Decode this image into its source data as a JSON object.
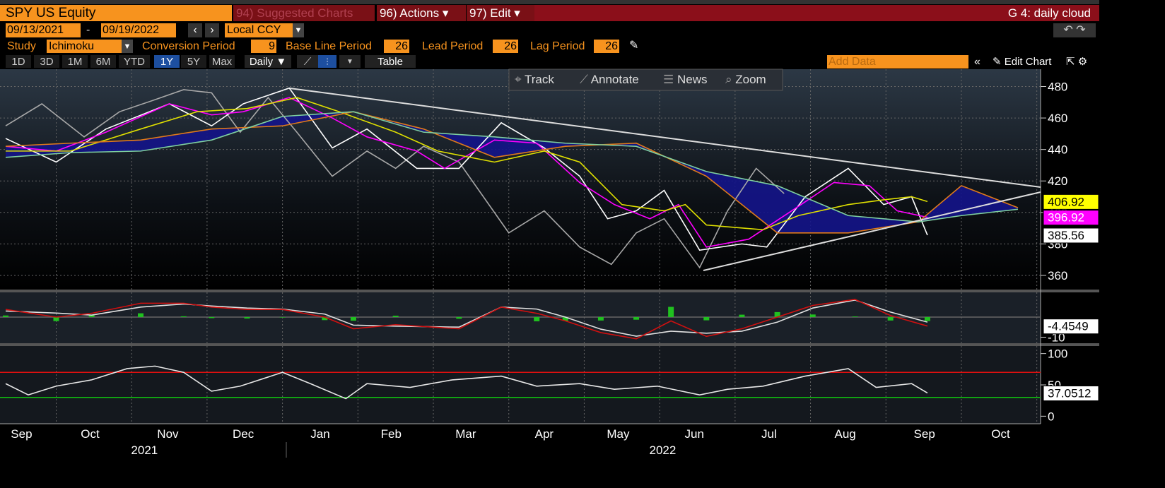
{
  "toolbar": {
    "security": "SPY US Equity",
    "suggested": "94) Suggested Charts",
    "actions": "96) Actions ▾",
    "edit": "97) Edit ▾",
    "page": "G 4: daily cloud",
    "start_date": "09/13/2021",
    "end_date": "09/19/2022",
    "currency": "Local CCY",
    "study_label": "Study",
    "study": "Ichimoku",
    "params": [
      {
        "label": "Conversion Period",
        "value": 9
      },
      {
        "label": "Base Line Period",
        "value": 26
      },
      {
        "label": "Lead Period",
        "value": 26
      },
      {
        "label": "Lag Period",
        "value": 26
      }
    ],
    "ranges": [
      "1D",
      "3D",
      "1M",
      "6M",
      "YTD",
      "1Y",
      "5Y",
      "Max"
    ],
    "selected_range": 5,
    "frequency": "Daily ▼",
    "table": "Table",
    "add_data": "Add Data",
    "edit_chart": "Edit Chart",
    "tools": [
      "Track",
      "Annotate",
      "News",
      "Zoom"
    ]
  },
  "chart_data": [
    {
      "type": "line",
      "xlim": [
        0.33,
        14.05
      ],
      "ylim": [
        351,
        491
      ],
      "yticks": [
        360,
        380,
        400,
        420,
        440,
        460,
        480
      ],
      "grid": true,
      "xgrid": [
        1,
        2,
        3,
        4,
        5,
        6,
        7,
        8,
        9,
        10,
        11,
        12,
        13,
        14
      ],
      "cloud": {
        "between": [
          4,
          5
        ],
        "color": "#14148a"
      },
      "series": [
        {
          "color": "#a8a8a8",
          "x": [
            0.33,
            0.81,
            1.37,
            1.84,
            2.27,
            2.69,
            3.06,
            3.44,
            3.81,
            4.19,
            4.66,
            5.12,
            5.5,
            5.87,
            6.34,
            7.0,
            7.47,
            7.94,
            8.36,
            8.69,
            9.06,
            9.53,
            9.9,
            10.28,
            10.65
          ],
          "values": [
            455,
            469,
            448,
            464,
            471,
            478,
            476,
            451,
            473,
            451,
            423,
            439,
            428,
            442,
            432,
            387,
            401,
            378,
            367,
            387,
            396,
            365,
            401,
            428,
            412
          ]
        },
        {
          "color": "#ffffff",
          "x": [
            0.33,
            1,
            1.66,
            2.5,
            3.06,
            3.48,
            4.09,
            4.66,
            5.12,
            5.78,
            6.34,
            6.9,
            7.47,
            7.94,
            8.31,
            8.69,
            9.06,
            9.53,
            10.09,
            10.42,
            10.93,
            11.5,
            11.97,
            12.34,
            12.55
          ],
          "values": [
            447,
            432,
            453,
            469,
            455,
            469,
            479,
            441,
            453,
            428,
            428,
            457,
            441,
            423,
            396,
            401,
            414,
            376,
            380,
            378,
            410,
            428,
            405,
            410,
            385.56
          ],
          "label_color": "#ffffff",
          "label_text": "#000000"
        },
        {
          "color": "#ff00ff",
          "x": [
            0.33,
            1,
            1.66,
            2.5,
            3.06,
            3.48,
            4.09,
            4.66,
            5.12,
            5.78,
            6.15,
            6.81,
            7.37,
            7.94,
            8.4,
            8.87,
            9.25,
            9.62,
            10.18,
            10.75,
            11.31,
            11.78,
            12.15,
            12.55
          ],
          "values": [
            442,
            439,
            451,
            469,
            462,
            464,
            473,
            460,
            448,
            439,
            428,
            446,
            444,
            419,
            405,
            396,
            405,
            378,
            383,
            401,
            419,
            417,
            401,
            396.92
          ],
          "label_color": "#ff00ff",
          "label_text": "#ffffff"
        },
        {
          "color": "#e0e000",
          "x": [
            0.33,
            1.19,
            2.12,
            2.87,
            3.53,
            4.19,
            4.75,
            5.5,
            6.06,
            6.81,
            7.47,
            7.94,
            8.5,
            9.06,
            9.34,
            9.62,
            10.37,
            10.84,
            11.5,
            11.97,
            12.34,
            12.55
          ],
          "values": [
            439,
            439,
            453,
            464,
            466,
            473,
            464,
            451,
            439,
            432,
            439,
            432,
            405,
            401,
            405,
            392,
            389,
            398,
            405,
            408,
            410,
            406.92
          ],
          "label_color": "#ffff00",
          "label_text": "#000000"
        },
        {
          "color": "#e07a1a",
          "x": [
            0.33,
            1.19,
            2.12,
            3.06,
            4,
            4.94,
            5.87,
            6.81,
            7.75,
            8.69,
            9.62,
            10.56,
            11.5,
            12.43,
            13,
            13.75
          ],
          "values": [
            442,
            444,
            446,
            453,
            455,
            464,
            453,
            435,
            442,
            444,
            423,
            387,
            387,
            394,
            417,
            403
          ]
        },
        {
          "color": "#7fd0a0",
          "x": [
            0.33,
            1.19,
            2.12,
            3.06,
            4,
            4.94,
            5.87,
            6.81,
            7.75,
            8.69,
            9.62,
            10.56,
            11.5,
            12.43,
            13,
            13.75
          ],
          "values": [
            435,
            438,
            439,
            446,
            461,
            464,
            451,
            448,
            444,
            442,
            426,
            417,
            398,
            394,
            398,
            402
          ]
        }
      ]
    },
    {
      "type": "line",
      "xlim": [
        0.33,
        14.05
      ],
      "ylim": [
        -13,
        12.3
      ],
      "yticks": [
        -10
      ],
      "xgrid": [
        1,
        2,
        3,
        4,
        5,
        6,
        7,
        8,
        9,
        10,
        11,
        12,
        13,
        14
      ],
      "levels": [
        {
          "value": 0,
          "color": "#666666"
        }
      ],
      "histogram": {
        "color": "#20c020",
        "x": [
          0.33,
          1,
          1.47,
          2.12,
          2.69,
          3.06,
          3.53,
          4,
          4.56,
          4.94,
          5.5,
          6.34,
          6.9,
          7.37,
          7.75,
          8.22,
          8.69,
          9.15,
          9.62,
          10.09,
          10.56,
          11.03,
          11.59,
          12.06,
          12.55
        ],
        "values": [
          0.8,
          -2,
          0.9,
          1.9,
          0.4,
          -0.5,
          -0.7,
          -0.2,
          -1.5,
          -1.8,
          0.7,
          -0.8,
          0,
          -2.1,
          -1.9,
          -1.7,
          -1.3,
          5.1,
          -1.6,
          1.2,
          2.5,
          1.3,
          0.3,
          -1.7,
          -1.95
        ]
      },
      "series": [
        {
          "color": "#e0e0e0",
          "x": [
            0.33,
            1,
            1.47,
            2.12,
            2.69,
            3.06,
            3.53,
            4,
            4.56,
            4.94,
            5.5,
            6.34,
            6.9,
            7.37,
            7.75,
            8.22,
            8.69,
            9.15,
            9.62,
            10.09,
            10.56,
            11.03,
            11.59,
            12.06,
            12.55
          ],
          "values": [
            3,
            2,
            1,
            5,
            6.5,
            5.5,
            4.5,
            4,
            1.5,
            -4,
            -4.5,
            -5,
            5,
            4,
            0,
            -6,
            -9.5,
            -7,
            -8,
            -7,
            -2.5,
            4.5,
            8.5,
            2.5,
            -2.5
          ]
        },
        {
          "color": "#d01010",
          "x": [
            0.33,
            1,
            1.47,
            2.12,
            2.69,
            3.06,
            3.53,
            4,
            4.56,
            4.94,
            5.5,
            6.34,
            6.9,
            7.37,
            7.75,
            8.22,
            8.69,
            9.15,
            9.62,
            10.09,
            10.56,
            11.03,
            11.59,
            12.06,
            12.55
          ],
          "values": [
            3.8,
            0,
            1.9,
            6.9,
            6.9,
            5,
            3.8,
            3.8,
            0,
            -5.8,
            -3.8,
            -5.8,
            5,
            1.9,
            -1.9,
            -7.7,
            -10.8,
            -1.9,
            -9.6,
            -5.8,
            0,
            5.8,
            8.8,
            0.8,
            -4.4549
          ],
          "label_color": "#ffffff",
          "label_text": "#000000"
        }
      ]
    },
    {
      "type": "line",
      "xlim": [
        0.33,
        14.05
      ],
      "ylim": [
        -12,
        112
      ],
      "yticks": [
        0,
        50,
        100
      ],
      "xgrid": [
        1,
        2,
        3,
        4,
        5,
        6,
        7,
        8,
        9,
        10,
        11,
        12,
        13,
        14
      ],
      "levels": [
        {
          "value": 70,
          "color": "#e01010"
        },
        {
          "value": 30,
          "color": "#10c010"
        }
      ],
      "series": [
        {
          "color": "#e8e8e8",
          "x": [
            0.33,
            0.63,
            1,
            1.47,
            1.94,
            2.31,
            2.69,
            3.06,
            3.44,
            4,
            4.37,
            4.84,
            5.12,
            5.69,
            6.25,
            6.9,
            7.37,
            7.94,
            8.4,
            8.97,
            9.53,
            9.9,
            10.37,
            10.93,
            11.5,
            11.87,
            12.34,
            12.55
          ],
          "values": [
            52,
            34,
            48,
            58,
            76,
            80,
            70,
            40,
            48,
            70,
            52,
            28,
            52,
            46,
            58,
            64,
            48,
            52,
            43,
            48,
            34,
            43,
            48,
            64,
            76,
            46,
            52,
            37.0512
          ],
          "label_color": "#ffffff",
          "label_text": "#000000"
        }
      ],
      "xticks": [
        {
          "value": 0.54,
          "label": "Sep"
        },
        {
          "value": 1.45,
          "label": "Oct"
        },
        {
          "value": 2.48,
          "label": "Nov"
        },
        {
          "value": 3.48,
          "label": "Dec"
        },
        {
          "value": 4.5,
          "label": "Jan"
        },
        {
          "value": 5.44,
          "label": "Feb"
        },
        {
          "value": 6.43,
          "label": "Mar"
        },
        {
          "value": 7.47,
          "label": "Apr"
        },
        {
          "value": 8.45,
          "label": "May"
        },
        {
          "value": 9.46,
          "label": "Jun"
        },
        {
          "value": 10.45,
          "label": "Jul"
        },
        {
          "value": 11.46,
          "label": "Aug"
        },
        {
          "value": 12.51,
          "label": "Sep"
        },
        {
          "value": 13.52,
          "label": "Oct"
        }
      ],
      "years": [
        {
          "value": 2.17,
          "label": "2021"
        },
        {
          "value": 9.04,
          "label": "2022"
        }
      ]
    }
  ]
}
